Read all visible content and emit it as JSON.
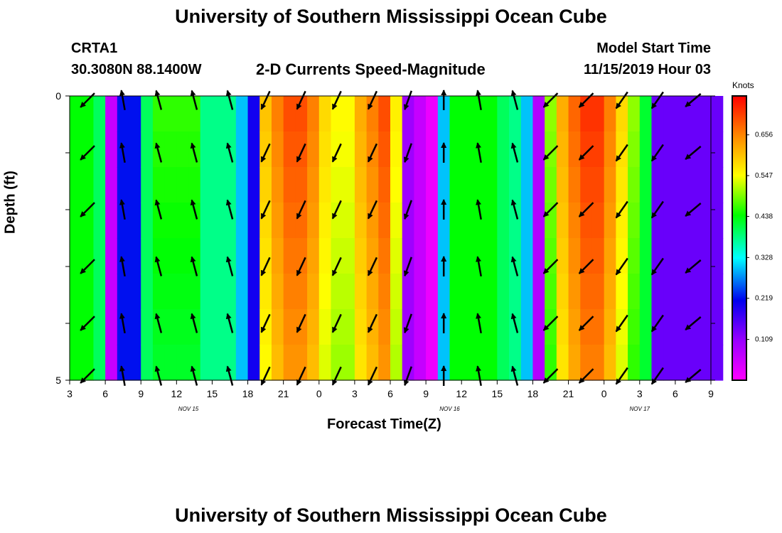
{
  "page": {
    "title_top": "University of Southern Mississippi Ocean Cube",
    "title_bottom": "University of Southern Mississippi Ocean Cube",
    "station_id": "CRTA1",
    "station_coords": "30.3080N 88.1400W",
    "plot_title": "2-D Currents Speed-Magnitude",
    "model_start_label": "Model Start Time",
    "model_start_value": "11/15/2019 Hour 03"
  },
  "chart_data": {
    "type": "heatmap",
    "title": "2-D Currents Speed-Magnitude",
    "xlabel": "Forecast Time(Z)",
    "ylabel": "Depth (ft)",
    "x_ticks": [
      "3",
      "6",
      "9",
      "12",
      "15",
      "18",
      "21",
      "0",
      "3",
      "6",
      "9",
      "12",
      "15",
      "18",
      "21",
      "0",
      "3",
      "6",
      "9"
    ],
    "x_range_hours": [
      3,
      57
    ],
    "date_labels": [
      {
        "text": "NOV 15",
        "hour": 13
      },
      {
        "text": "NOV 16",
        "hour": 35
      },
      {
        "text": "NOV 17",
        "hour": 51
      }
    ],
    "y_ticks": [
      "0",
      "5"
    ],
    "ylim": [
      0,
      5
    ],
    "colorbar": {
      "unit": "Knots",
      "ticks": [
        0.109,
        0.219,
        0.328,
        0.438,
        0.547,
        0.656
      ],
      "range": [
        0.0,
        0.76
      ]
    },
    "speed_by_hour": [
      0.44,
      0.44,
      0.4,
      0.06,
      0.22,
      0.22,
      0.4,
      0.46,
      0.46,
      0.46,
      0.46,
      0.38,
      0.38,
      0.38,
      0.3,
      0.2,
      0.6,
      0.66,
      0.7,
      0.7,
      0.66,
      0.58,
      0.55,
      0.55,
      0.62,
      0.66,
      0.7,
      0.56,
      0.1,
      0.06,
      0.02,
      0.3,
      0.44,
      0.44,
      0.44,
      0.44,
      0.4,
      0.38,
      0.3,
      0.08,
      0.5,
      0.62,
      0.68,
      0.72,
      0.72,
      0.66,
      0.58,
      0.5,
      0.42,
      0.14,
      0.14,
      0.14,
      0.14,
      0.14,
      0.14
    ],
    "vectors": {
      "hours": [
        4.5,
        7.5,
        10.5,
        13.5,
        16.5,
        19.5,
        22.5,
        25.5,
        28.5,
        31.5,
        34.5,
        37.5,
        40.5,
        43.5,
        46.5,
        49.5,
        52.5,
        55.5
      ],
      "depths": [
        0,
        1,
        2,
        3,
        4,
        5
      ],
      "direction_deg_by_hour": [
        135,
        260,
        255,
        255,
        255,
        115,
        115,
        115,
        115,
        110,
        270,
        260,
        255,
        135,
        135,
        125,
        125,
        140
      ]
    }
  }
}
